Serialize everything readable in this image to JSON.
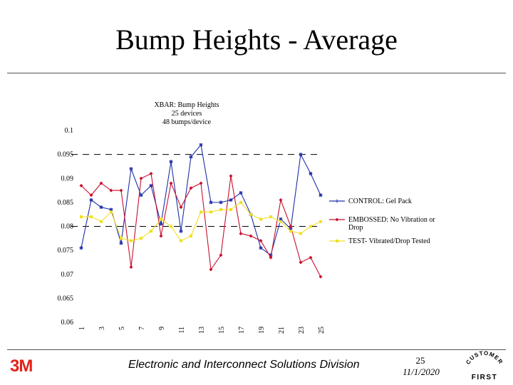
{
  "slide": {
    "title": "Bump Heights - Average",
    "footer_division": "Electronic and Interconnect Solutions Division",
    "page_number": "25",
    "date": "11/1/2020",
    "logo_text": "3M",
    "customer_first_logo": {
      "top": "CUSTOMER",
      "bottom": "FIRST"
    }
  },
  "chart_data": {
    "type": "line",
    "title_lines": [
      "XBAR: Bump Heights",
      "25 devices",
      "48 bumps/device"
    ],
    "x": [
      1,
      2,
      3,
      4,
      5,
      6,
      7,
      8,
      9,
      10,
      11,
      12,
      13,
      14,
      15,
      16,
      17,
      18,
      19,
      20,
      21,
      22,
      23,
      24,
      25
    ],
    "xtick_labels": [
      "1",
      "3",
      "5",
      "7",
      "9",
      "11",
      "13",
      "15",
      "17",
      "19",
      "21",
      "23",
      "25"
    ],
    "xtick_values": [
      1,
      3,
      5,
      7,
      9,
      11,
      13,
      15,
      17,
      19,
      21,
      23,
      25
    ],
    "ylim": [
      0.06,
      0.1
    ],
    "yticks": [
      "0.1",
      "0.095",
      "0.09",
      "0.085",
      "0.08",
      "0.075",
      "0.07",
      "0.065",
      "0.06"
    ],
    "ytick_values": [
      0.1,
      0.095,
      0.09,
      0.085,
      0.08,
      0.075,
      0.07,
      0.065,
      0.06
    ],
    "control_limits": [
      0.095,
      0.08
    ],
    "grid": false,
    "legend_position": "right",
    "series": [
      {
        "name": "CONTROL: Gel Pack",
        "color": "#1f2fa8",
        "marker": "star",
        "values": [
          0.0755,
          0.0855,
          0.084,
          0.0835,
          0.0765,
          0.092,
          0.0865,
          0.0885,
          0.0805,
          0.0935,
          0.079,
          0.0945,
          0.097,
          0.085,
          0.085,
          0.0855,
          0.087,
          0.0825,
          0.0755,
          0.074,
          0.0815,
          0.0795,
          0.095,
          0.091,
          0.0865
        ]
      },
      {
        "name": "EMBOSSED: No Vibration or Drop",
        "color": "#c8102e",
        "marker": "diamond",
        "values": [
          0.0885,
          0.0865,
          0.089,
          0.0875,
          0.0875,
          0.0715,
          0.09,
          0.091,
          0.078,
          0.089,
          0.084,
          0.088,
          0.089,
          0.071,
          0.074,
          0.0905,
          0.0785,
          0.078,
          0.077,
          0.0735,
          0.0855,
          0.08,
          0.0725,
          0.0735,
          0.0695
        ]
      },
      {
        "name": "TEST- Vibrated/Drop Tested",
        "color": "#f0e020",
        "marker": "square",
        "values": [
          0.082,
          0.082,
          0.081,
          0.083,
          0.0775,
          0.077,
          0.0775,
          0.079,
          0.0815,
          0.08,
          0.077,
          0.078,
          0.083,
          0.083,
          0.0835,
          0.0835,
          0.085,
          0.0825,
          0.0815,
          0.082,
          0.081,
          0.079,
          0.0785,
          0.08,
          0.081
        ]
      }
    ]
  }
}
